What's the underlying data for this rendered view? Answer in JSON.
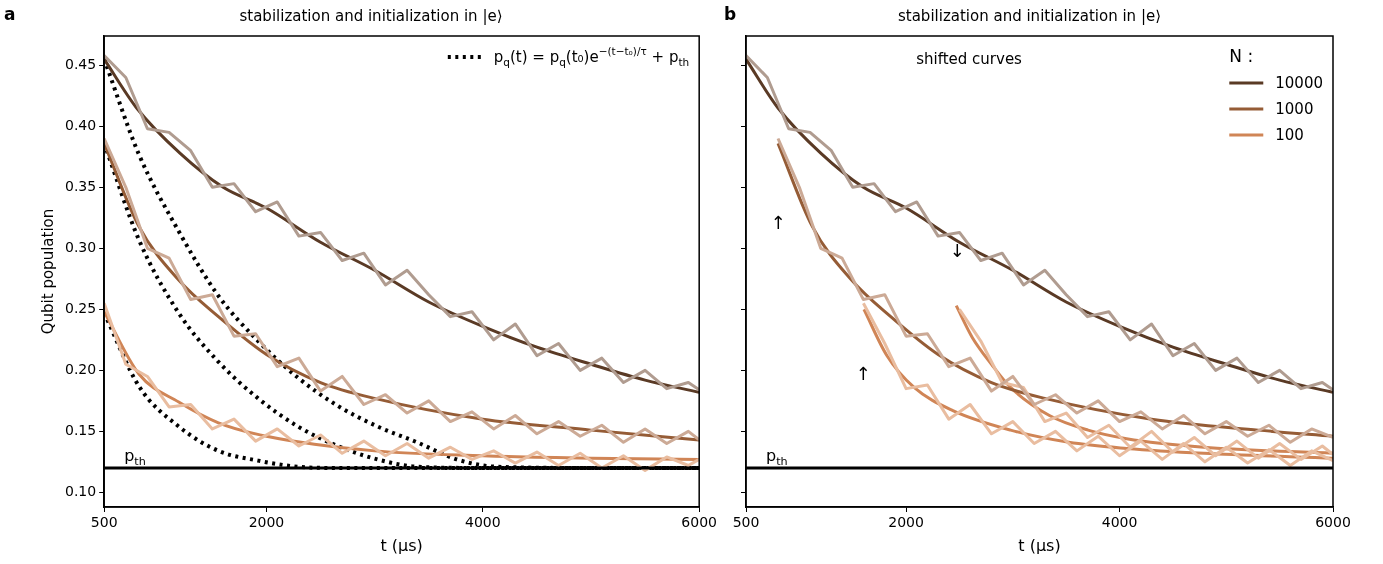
{
  "chart_data": [
    {
      "type": "line",
      "title": "stabilization and initialization in |e⟩",
      "xlabel": "t (μs)",
      "ylabel": "Qubit population",
      "xlim": [
        500,
        6000
      ],
      "xticks": [
        500,
        2000,
        4000,
        6000
      ],
      "ylim": [
        0.088,
        0.474
      ],
      "yticks": [
        {
          "value": 0.1,
          "label": "0.10"
        },
        0.15,
        {
          "value": 0.2,
          "label": "0.20"
        },
        0.25,
        {
          "value": 0.3,
          "label": "0.30"
        },
        0.35,
        {
          "value": 0.4,
          "label": "0.40"
        },
        0.45
      ],
      "marker": "none",
      "legend": "top right",
      "ref_lines": [
        {
          "axis": "y",
          "value": 0.12,
          "label": "p$_{th}$",
          "color": "#000000"
        }
      ],
      "annotations": [
        "a"
      ],
      "series": [
        {
          "color": "#b09c90",
          "x": [
            500,
            700,
            900,
            1100,
            1300,
            1500,
            1700,
            1900,
            2100,
            2300,
            2500,
            2700,
            2900,
            3100,
            3300,
            3500,
            3700,
            3900,
            4100,
            4300,
            4500,
            4700,
            4900,
            5100,
            5300,
            5500,
            5700,
            5900,
            6000
          ],
          "values": [
            0.458,
            0.44,
            0.398,
            0.395,
            0.38,
            0.35,
            0.353,
            0.33,
            0.338,
            0.31,
            0.313,
            0.29,
            0.296,
            0.27,
            0.282,
            0.262,
            0.244,
            0.248,
            0.225,
            0.238,
            0.212,
            0.222,
            0.2,
            0.21,
            0.19,
            0.2,
            0.185,
            0.19,
            0.184
          ]
        },
        {
          "color": "#ccaa96",
          "x": [
            500,
            700,
            900,
            1100,
            1300,
            1500,
            1700,
            1900,
            2100,
            2300,
            2500,
            2700,
            2900,
            3100,
            3300,
            3500,
            3700,
            3900,
            4100,
            4300,
            4500,
            4700,
            4900,
            5100,
            5300,
            5500,
            5700,
            5900,
            6000
          ],
          "values": [
            0.39,
            0.35,
            0.3,
            0.292,
            0.258,
            0.262,
            0.228,
            0.23,
            0.203,
            0.21,
            0.183,
            0.195,
            0.172,
            0.18,
            0.165,
            0.175,
            0.158,
            0.166,
            0.152,
            0.163,
            0.148,
            0.158,
            0.146,
            0.155,
            0.141,
            0.152,
            0.14,
            0.15,
            0.143
          ]
        },
        {
          "color": "#e9bda0",
          "x": [
            500,
            700,
            900,
            1100,
            1300,
            1500,
            1700,
            1900,
            2100,
            2300,
            2500,
            2700,
            2900,
            3100,
            3300,
            3500,
            3700,
            3900,
            4100,
            4300,
            4500,
            4700,
            4900,
            5100,
            5300,
            5500,
            5700,
            5900,
            6000
          ],
          "values": [
            0.255,
            0.205,
            0.195,
            0.17,
            0.172,
            0.152,
            0.16,
            0.142,
            0.152,
            0.138,
            0.147,
            0.132,
            0.142,
            0.13,
            0.14,
            0.128,
            0.137,
            0.127,
            0.134,
            0.124,
            0.133,
            0.122,
            0.132,
            0.12,
            0.13,
            0.118,
            0.129,
            0.122,
            0.127
          ]
        },
        {
          "color": "#5a3a25",
          "x": [
            500,
            800,
            1200,
            1600,
            2000,
            2500,
            3000,
            3500,
            4000,
            4500,
            5000,
            5500,
            6000
          ],
          "values": [
            0.455,
            0.415,
            0.378,
            0.35,
            0.333,
            0.305,
            0.282,
            0.256,
            0.236,
            0.219,
            0.205,
            0.192,
            0.182
          ]
        },
        {
          "color": "#955c36",
          "x": [
            500,
            821,
            1189,
            1556,
            2000,
            2500,
            3000,
            4000,
            5000,
            6000
          ],
          "values": [
            0.386,
            0.318,
            0.274,
            0.244,
            0.213,
            0.19,
            0.177,
            0.16,
            0.151,
            0.143
          ]
        },
        {
          "color": "#d08556",
          "x": [
            500,
            821,
            1189,
            1556,
            2000,
            3000,
            4000,
            5000,
            6000
          ],
          "values": [
            0.248,
            0.197,
            0.174,
            0.157,
            0.146,
            0.134,
            0.13,
            0.128,
            0.127
          ]
        },
        {
          "name": "p$_{q}$(t) = p$_{q}$(t₀)e$^{−(t−t₀)/τ}$ + p$_{th}$",
          "color": "#000000",
          "line_style": "dotted",
          "x": [
            500,
            821,
            1189,
            1556,
            1923,
            2291,
            2658,
            3026,
            3393,
            3760,
            4128,
            5000,
            6000
          ],
          "values": [
            0.455,
            0.377,
            0.314,
            0.261,
            0.224,
            0.194,
            0.171,
            0.154,
            0.141,
            0.127,
            0.121,
            0.12,
            0.12
          ]
        },
        {
          "color": "#000000",
          "line_style": "dotted",
          "x": [
            500,
            821,
            1189,
            1556,
            1923,
            2291,
            2658,
            3026,
            3393,
            4000,
            5000,
            6000
          ],
          "values": [
            0.386,
            0.307,
            0.247,
            0.207,
            0.177,
            0.154,
            0.138,
            0.127,
            0.121,
            0.12,
            0.12,
            0.12
          ]
        },
        {
          "color": "#000000",
          "line_style": "dotted",
          "x": [
            500,
            821,
            1189,
            1556,
            1923,
            2291,
            2658,
            3500,
            6000
          ],
          "values": [
            0.247,
            0.187,
            0.154,
            0.134,
            0.126,
            0.121,
            0.12,
            0.12,
            0.12
          ]
        }
      ]
    },
    {
      "type": "line",
      "title": "stabilization and initialization in |e⟩",
      "xlabel": "t (μs)",
      "xlim": [
        500,
        6000
      ],
      "xticks": [
        500,
        2000,
        4000,
        6000
      ],
      "ylim": [
        0.088,
        0.474
      ],
      "yticks": [
        0.1,
        0.15,
        0.2,
        0.25,
        0.3,
        0.35,
        0.4,
        0.45
      ],
      "tick_labels": "x",
      "marker": "none",
      "legend": "top right",
      "legend_title": "N :",
      "ref_lines": [
        {
          "axis": "y",
          "value": 0.12,
          "label": "p$_{th}$",
          "color": "#000000"
        }
      ],
      "annotations": [
        "b",
        "shifted curves",
        "↑",
        "↓",
        "↑"
      ],
      "series": [
        {
          "color": "#b09c90",
          "x": [
            500,
            700,
            900,
            1100,
            1300,
            1500,
            1700,
            1900,
            2100,
            2300,
            2500,
            2700,
            2900,
            3100,
            3300,
            3500,
            3700,
            3900,
            4100,
            4300,
            4500,
            4700,
            4900,
            5100,
            5300,
            5500,
            5700,
            5900,
            6000
          ],
          "values": [
            0.458,
            0.44,
            0.398,
            0.395,
            0.38,
            0.35,
            0.353,
            0.33,
            0.338,
            0.31,
            0.313,
            0.29,
            0.296,
            0.27,
            0.282,
            0.262,
            0.244,
            0.248,
            0.225,
            0.238,
            0.212,
            0.222,
            0.2,
            0.21,
            0.19,
            0.2,
            0.185,
            0.19,
            0.184
          ]
        },
        {
          "color": "#ccaa96",
          "x": [
            800,
            1000,
            1200,
            1400,
            1600,
            1800,
            2000,
            2200,
            2400,
            2600,
            2800,
            3000,
            3200,
            3400,
            3600,
            3800,
            4000,
            4200,
            4400,
            4600,
            4800,
            5000,
            5200,
            5400,
            5600,
            5800,
            6000
          ],
          "values": [
            0.39,
            0.35,
            0.3,
            0.292,
            0.258,
            0.262,
            0.228,
            0.23,
            0.203,
            0.21,
            0.183,
            0.195,
            0.172,
            0.18,
            0.165,
            0.175,
            0.158,
            0.166,
            0.152,
            0.163,
            0.148,
            0.158,
            0.146,
            0.155,
            0.141,
            0.152,
            0.145
          ]
        },
        {
          "color": "#e9bda0",
          "x": [
            1600,
            1800,
            2000,
            2200,
            2400,
            2600,
            2800,
            3000,
            3200,
            3400,
            3600,
            3800,
            4000,
            4200,
            4400,
            4600,
            4800,
            5000,
            5200,
            5400,
            5600,
            5800,
            6000
          ],
          "values": [
            0.255,
            0.222,
            0.185,
            0.188,
            0.16,
            0.172,
            0.148,
            0.158,
            0.14,
            0.15,
            0.134,
            0.146,
            0.13,
            0.142,
            0.127,
            0.14,
            0.125,
            0.137,
            0.124,
            0.135,
            0.122,
            0.134,
            0.126
          ]
        },
        {
          "color": "#e9bda0",
          "x": [
            2500,
            2700,
            2900,
            3100,
            3300,
            3500,
            3700,
            3900,
            4100,
            4300,
            4500,
            4700,
            4900,
            5100,
            5300,
            5500,
            5700,
            5900,
            6000
          ],
          "values": [
            0.25,
            0.224,
            0.19,
            0.186,
            0.158,
            0.165,
            0.145,
            0.155,
            0.137,
            0.15,
            0.133,
            0.145,
            0.13,
            0.142,
            0.128,
            0.14,
            0.127,
            0.138,
            0.131
          ]
        },
        {
          "name": "10000",
          "color": "#5a3a25",
          "x": [
            500,
            800,
            1200,
            1600,
            2000,
            2500,
            3000,
            3500,
            4000,
            4500,
            5000,
            5500,
            6000
          ],
          "values": [
            0.455,
            0.415,
            0.378,
            0.35,
            0.333,
            0.305,
            0.282,
            0.256,
            0.236,
            0.219,
            0.205,
            0.192,
            0.182
          ]
        },
        {
          "name": "1000",
          "color": "#955c36",
          "x": [
            800,
            1121,
            1489,
            1856,
            2300,
            2800,
            3300,
            4300,
            5300,
            6000
          ],
          "values": [
            0.386,
            0.318,
            0.274,
            0.244,
            0.213,
            0.19,
            0.177,
            0.16,
            0.151,
            0.146
          ]
        },
        {
          "name": "100",
          "color": "#d08556",
          "x": [
            1605,
            1821,
            2075,
            2438,
            2979,
            3524,
            4066,
            4790,
            6000
          ],
          "values": [
            0.25,
            0.212,
            0.186,
            0.167,
            0.151,
            0.141,
            0.136,
            0.132,
            0.128
          ]
        },
        {
          "color": "#d08556",
          "x": [
            2470,
            2620,
            2800,
            2979,
            3343,
            3705,
            4066,
            4790,
            6000
          ],
          "values": [
            0.253,
            0.227,
            0.205,
            0.186,
            0.163,
            0.151,
            0.144,
            0.137,
            0.132
          ]
        }
      ]
    }
  ]
}
